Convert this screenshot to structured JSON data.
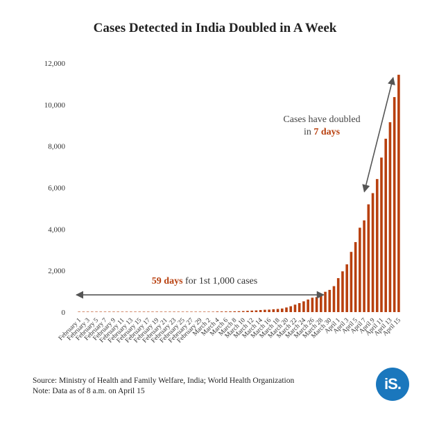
{
  "chart_data": {
    "type": "bar",
    "title": "Cases Detected in India Doubled in A Week",
    "ylim": [
      0,
      12000
    ],
    "yticks": [
      0,
      2000,
      4000,
      6000,
      8000,
      10000,
      12000
    ],
    "ytick_labels": [
      "0",
      "2,000",
      "4,000",
      "6,000",
      "8,000",
      "10,000",
      "12,000"
    ],
    "bar_color": "#b8400f",
    "categories": [
      "February 1",
      "February 2",
      "February 3",
      "February 4",
      "February 5",
      "February 6",
      "February 7",
      "February 8",
      "February 9",
      "February 10",
      "February 11",
      "February 12",
      "February 13",
      "February 14",
      "February 15",
      "February 16",
      "February 17",
      "February 18",
      "February 19",
      "February 20",
      "February 21",
      "February 22",
      "February 23",
      "February 24",
      "February 25",
      "February 26",
      "February 27",
      "February 28",
      "February 29",
      "March 1",
      "March 2",
      "March 3",
      "March 4",
      "March 5",
      "March 6",
      "March 7",
      "March 8",
      "March 9",
      "March 10",
      "March 11",
      "March 12",
      "March 13",
      "March 14",
      "March 15",
      "March 16",
      "March 17",
      "March 18",
      "March 19",
      "March 20",
      "March 21",
      "March 22",
      "March 23",
      "March 24",
      "March 25",
      "March 26",
      "March 27",
      "March 28",
      "March 29",
      "March 30",
      "March 31",
      "April 1",
      "April 2",
      "April 3",
      "April 4",
      "April 5",
      "April 6",
      "April 7",
      "April 8",
      "April 9",
      "April 10",
      "April 11",
      "April 12",
      "April 13",
      "April 14",
      "April 15"
    ],
    "xtick_labels": [
      "February 1",
      "February 3",
      "February 5",
      "February 7",
      "February 9",
      "February 11",
      "February 13",
      "February 15",
      "February 17",
      "February 19",
      "February 21",
      "February 23",
      "February 25",
      "February 27",
      "February 29",
      "March 2",
      "March 4",
      "March 6",
      "March 8",
      "March 10",
      "March 12",
      "March 14",
      "March 16",
      "March 18",
      "March 20",
      "March 22",
      "March 24",
      "March 26",
      "March 28",
      "March 30",
      "April 1",
      "April 3",
      "April 5",
      "April 7",
      "April 9",
      "April 11",
      "April 13",
      "April 15"
    ],
    "values": [
      1,
      2,
      3,
      3,
      3,
      3,
      3,
      3,
      3,
      3,
      3,
      3,
      3,
      3,
      3,
      3,
      3,
      3,
      3,
      3,
      3,
      3,
      3,
      3,
      3,
      3,
      3,
      3,
      3,
      3,
      5,
      5,
      28,
      30,
      31,
      34,
      39,
      43,
      50,
      62,
      73,
      82,
      100,
      113,
      119,
      137,
      151,
      173,
      223,
      283,
      360,
      433,
      519,
      606,
      694,
      724,
      873,
      979,
      1071,
      1251,
      1637,
      1965,
      2301,
      2902,
      3374,
      4067,
      4421,
      5194,
      5734,
      6412,
      7447,
      8356,
      9152,
      10363,
      11439
    ],
    "annotations": [
      {
        "text_emph": "59 days",
        "text_rest": " for 1st 1,000 cases",
        "from_category": "February 1",
        "to_category": "March 28",
        "y_value": 830
      },
      {
        "line1": "Cases have doubled",
        "line2_plain": "in ",
        "line2_emph": "7 days",
        "from_category": "April 8",
        "to_category": "April 15",
        "from_value": 5800,
        "to_value": 11300
      }
    ],
    "emph_color": "#b8400f"
  },
  "footer": {
    "source": "Source: Ministry of Health and Family Welfare, India; World Health Organization",
    "note": "Note: Data as of 8 a.m. on April 15"
  },
  "logo": {
    "text": "iS.",
    "color": "#1a77bd"
  }
}
